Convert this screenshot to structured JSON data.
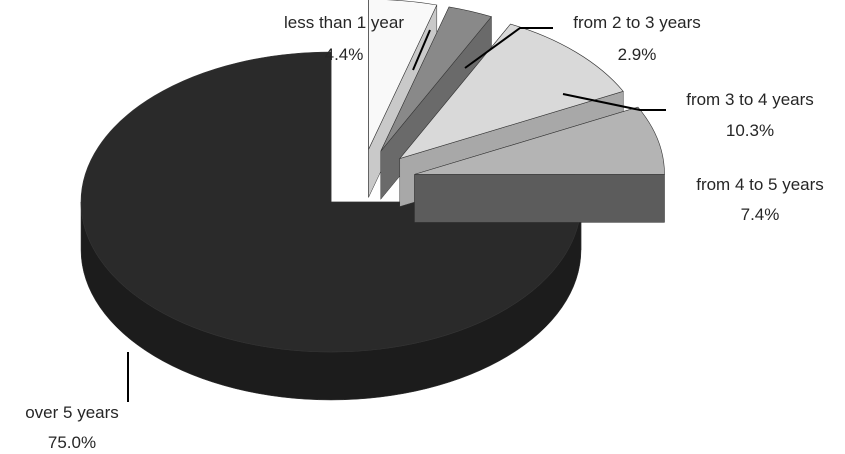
{
  "chart_data": {
    "type": "pie",
    "title": "",
    "slices": [
      {
        "category": "over 5 years",
        "percent_label": "75.0%",
        "value": 75.0,
        "colors": {
          "top": "#2a2a2a",
          "side": "#1c1c1c"
        }
      },
      {
        "category": "less than 1 year",
        "percent_label": "4.4%",
        "value": 4.4,
        "colors": {
          "top": "#f9f9f9",
          "side": "#c9c9c9"
        }
      },
      {
        "category": "from 2 to 3 years",
        "percent_label": "2.9%",
        "value": 2.9,
        "colors": {
          "top": "#898989",
          "side": "#6a6a6a"
        }
      },
      {
        "category": "from 3 to 4 years",
        "percent_label": "10.3%",
        "value": 10.3,
        "colors": {
          "top": "#d9d9d9",
          "side": "#a8a8a8"
        }
      },
      {
        "category": "from 4 to 5 years",
        "percent_label": "7.4%",
        "value": 7.4,
        "colors": {
          "top": "#b4b4b4",
          "side": "#5c5c5c"
        }
      }
    ],
    "style": "3d-exploded",
    "legend": "none"
  }
}
